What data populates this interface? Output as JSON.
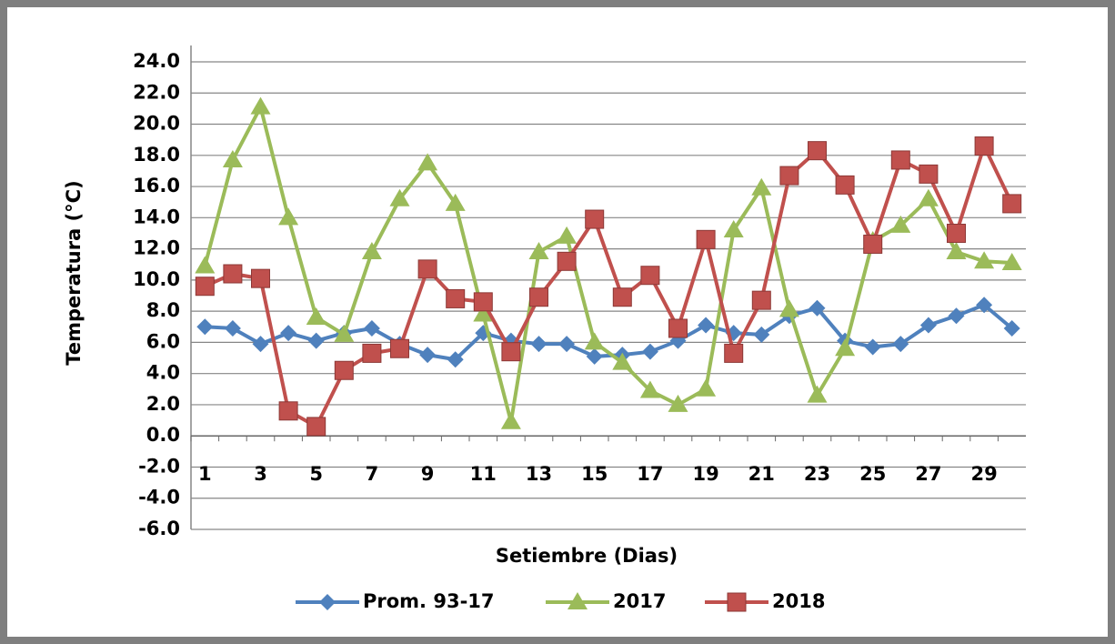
{
  "chart_data": {
    "type": "line",
    "xlabel": "Setiembre  (Dias)",
    "ylabel": "Temperatura (°C)",
    "categories": [
      1,
      null,
      3,
      null,
      5,
      null,
      7,
      null,
      9,
      null,
      11,
      null,
      13,
      null,
      15,
      null,
      17,
      null,
      19,
      null,
      21,
      null,
      23,
      null,
      25,
      null,
      27,
      null,
      29,
      null
    ],
    "series": [
      {
        "name": "Prom. 93-17",
        "color": "#4f81bd",
        "marker": "diamond",
        "values": [
          7.0,
          6.9,
          5.9,
          6.6,
          6.1,
          6.6,
          6.9,
          5.9,
          5.2,
          4.9,
          6.6,
          6.1,
          5.9,
          5.9,
          5.1,
          5.2,
          5.4,
          6.1,
          7.1,
          6.6,
          6.5,
          7.7,
          8.2,
          6.1,
          5.7,
          5.9,
          7.1,
          7.7,
          8.4,
          6.9
        ]
      },
      {
        "name": "2017",
        "color": "#9bbb59",
        "marker": "triangle",
        "values": [
          10.9,
          17.7,
          21.1,
          14.0,
          7.6,
          6.5,
          11.8,
          15.2,
          17.5,
          14.9,
          7.8,
          0.9,
          11.8,
          12.8,
          6.0,
          4.7,
          2.9,
          2.0,
          3.0,
          13.2,
          15.9,
          8.1,
          2.6,
          5.6,
          12.5,
          13.5,
          15.2,
          11.8,
          11.2,
          11.1
        ]
      },
      {
        "name": "2018",
        "color": "#c0504d",
        "marker": "square",
        "values": [
          9.6,
          10.4,
          10.1,
          1.6,
          0.6,
          4.2,
          5.3,
          5.6,
          10.7,
          8.8,
          8.6,
          5.4,
          8.9,
          11.2,
          13.9,
          8.9,
          10.3,
          6.9,
          12.6,
          5.3,
          8.7,
          16.7,
          18.3,
          16.1,
          12.3,
          17.7,
          16.8,
          13.0,
          18.6,
          14.9
        ]
      }
    ],
    "ylim": [
      -6,
      24
    ],
    "yticks": [
      {
        "value": -6,
        "label": "-6.0"
      },
      {
        "value": -4,
        "label": "-4.0"
      },
      {
        "value": -2,
        "label": "-2.0"
      },
      {
        "value": 0,
        "label": "0.0"
      },
      {
        "value": 2,
        "label": "2.0"
      },
      {
        "value": 4,
        "label": "4.0"
      },
      {
        "value": 6,
        "label": "6.0"
      },
      {
        "value": 8,
        "label": "8.0"
      },
      {
        "value": 10,
        "label": "10.0"
      },
      {
        "value": 12,
        "label": "12.0"
      },
      {
        "value": 14,
        "label": "14.0"
      },
      {
        "value": 16,
        "label": "16.0"
      },
      {
        "value": 18,
        "label": "18.0"
      },
      {
        "value": 20,
        "label": "20.0"
      },
      {
        "value": 22,
        "label": "22.0"
      },
      {
        "value": 24,
        "label": "24.0"
      }
    ],
    "grid": true,
    "legend": "bottom"
  }
}
